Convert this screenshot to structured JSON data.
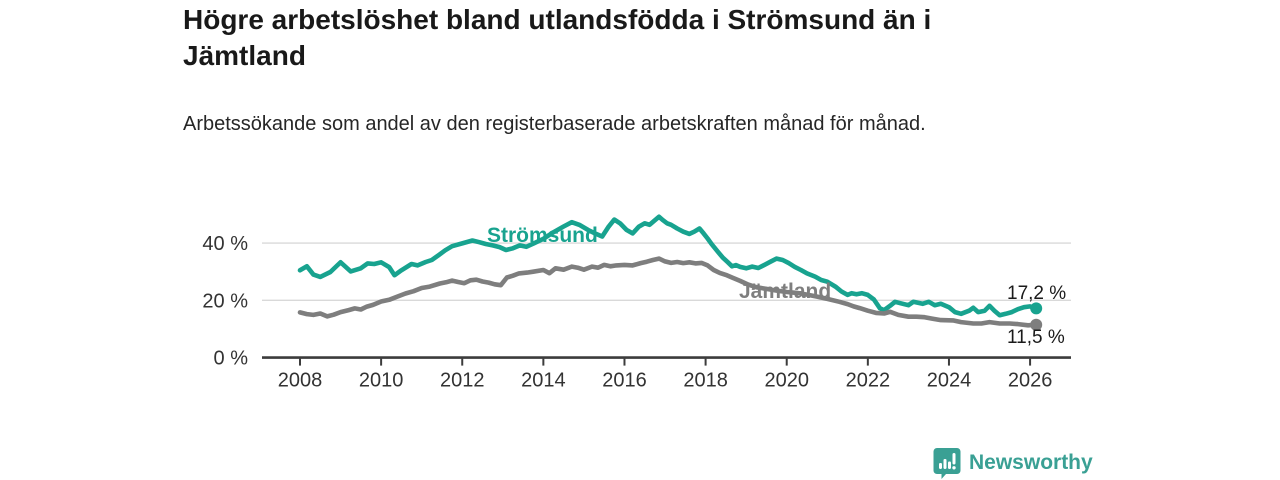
{
  "title": "Högre arbetslöshet bland utlandsfödda i Strömsund än i Jämtland",
  "subtitle": "Arbetssökande som andel av den registerbaserade arbetskraften månad för månad.",
  "footer": {
    "logo_text": "Newsworthy",
    "logo_icon": "bar-chart-speech-bubble"
  },
  "colors": {
    "stromsund": "#18a38f",
    "jamtland": "#7e7e7e",
    "grid": "#d9d9d9",
    "axis": "#3c3c3c",
    "tick_text": "#333333",
    "title_text": "#191919",
    "value_text": "#1a1a1a",
    "brand": "#3aa094"
  },
  "chart_data": {
    "type": "line",
    "title": "Högre arbetslöshet bland utlandsfödda i Strömsund än i Jämtland",
    "subtitle": "Arbetssökande som andel av den registerbaserade arbetskraften månad för månad.",
    "xlabel": "",
    "ylabel": "",
    "x_ticks": [
      2008,
      2010,
      2012,
      2014,
      2016,
      2018,
      2020,
      2022,
      2024,
      2026
    ],
    "y_ticks": [
      {
        "value": 40,
        "label": "40 %"
      },
      {
        "value": 20,
        "label": "20 %"
      },
      {
        "value": 0,
        "label": "0 %"
      }
    ],
    "x_range": [
      2007.1,
      2027.0
    ],
    "y_range": [
      0,
      54
    ],
    "grid": "horizontal",
    "legend_position": "inline-labels",
    "series": [
      {
        "name": "Strömsund",
        "color_key": "stromsund",
        "end_label": "17,2 %",
        "end_value": 17.2,
        "points": [
          [
            2008.0,
            30.5
          ],
          [
            2008.17,
            31.9
          ],
          [
            2008.33,
            29.0
          ],
          [
            2008.5,
            28.2
          ],
          [
            2008.75,
            29.9
          ],
          [
            2008.92,
            32.2
          ],
          [
            2009.0,
            33.3
          ],
          [
            2009.25,
            30.1
          ],
          [
            2009.5,
            31.2
          ],
          [
            2009.67,
            32.9
          ],
          [
            2009.83,
            32.7
          ],
          [
            2010.0,
            33.3
          ],
          [
            2010.2,
            31.6
          ],
          [
            2010.33,
            28.8
          ],
          [
            2010.5,
            30.5
          ],
          [
            2010.75,
            32.7
          ],
          [
            2010.9,
            32.2
          ],
          [
            2011.1,
            33.4
          ],
          [
            2011.25,
            34.1
          ],
          [
            2011.42,
            35.8
          ],
          [
            2011.58,
            37.5
          ],
          [
            2011.75,
            38.9
          ],
          [
            2012.0,
            39.9
          ],
          [
            2012.25,
            40.9
          ],
          [
            2012.42,
            40.3
          ],
          [
            2012.58,
            39.7
          ],
          [
            2012.75,
            39.2
          ],
          [
            2012.92,
            38.6
          ],
          [
            2013.08,
            37.6
          ],
          [
            2013.25,
            38.2
          ],
          [
            2013.42,
            39.2
          ],
          [
            2013.58,
            38.7
          ],
          [
            2013.75,
            39.8
          ],
          [
            2014.0,
            41.5
          ],
          [
            2014.25,
            43.8
          ],
          [
            2014.5,
            45.8
          ],
          [
            2014.7,
            47.3
          ],
          [
            2014.9,
            46.3
          ],
          [
            2015.1,
            44.6
          ],
          [
            2015.3,
            43.2
          ],
          [
            2015.45,
            42.3
          ],
          [
            2015.6,
            45.6
          ],
          [
            2015.75,
            48.2
          ],
          [
            2015.9,
            46.8
          ],
          [
            2016.05,
            44.6
          ],
          [
            2016.2,
            43.4
          ],
          [
            2016.35,
            45.7
          ],
          [
            2016.5,
            46.9
          ],
          [
            2016.62,
            46.4
          ],
          [
            2016.72,
            47.6
          ],
          [
            2016.85,
            49.2
          ],
          [
            2016.95,
            48.0
          ],
          [
            2017.05,
            46.9
          ],
          [
            2017.15,
            46.4
          ],
          [
            2017.3,
            45.1
          ],
          [
            2017.45,
            44.0
          ],
          [
            2017.6,
            43.2
          ],
          [
            2017.72,
            44.0
          ],
          [
            2017.85,
            45.1
          ],
          [
            2017.95,
            43.4
          ],
          [
            2018.05,
            41.6
          ],
          [
            2018.15,
            39.6
          ],
          [
            2018.3,
            37.0
          ],
          [
            2018.42,
            35.0
          ],
          [
            2018.55,
            33.3
          ],
          [
            2018.65,
            31.9
          ],
          [
            2018.75,
            32.3
          ],
          [
            2018.85,
            31.7
          ],
          [
            2019.0,
            31.2
          ],
          [
            2019.15,
            31.8
          ],
          [
            2019.3,
            31.3
          ],
          [
            2019.45,
            32.4
          ],
          [
            2019.6,
            33.5
          ],
          [
            2019.75,
            34.6
          ],
          [
            2019.9,
            34.1
          ],
          [
            2020.05,
            33.0
          ],
          [
            2020.2,
            31.7
          ],
          [
            2020.35,
            30.6
          ],
          [
            2020.5,
            29.4
          ],
          [
            2020.7,
            28.3
          ],
          [
            2020.85,
            27.1
          ],
          [
            2021.0,
            26.5
          ],
          [
            2021.2,
            24.8
          ],
          [
            2021.35,
            23.1
          ],
          [
            2021.5,
            21.9
          ],
          [
            2021.6,
            22.5
          ],
          [
            2021.72,
            22.1
          ],
          [
            2021.85,
            22.5
          ],
          [
            2022.0,
            21.9
          ],
          [
            2022.15,
            20.3
          ],
          [
            2022.3,
            17.2
          ],
          [
            2022.4,
            16.6
          ],
          [
            2022.55,
            18.1
          ],
          [
            2022.67,
            19.5
          ],
          [
            2022.8,
            19.0
          ],
          [
            2023.0,
            18.3
          ],
          [
            2023.12,
            19.5
          ],
          [
            2023.35,
            18.8
          ],
          [
            2023.5,
            19.5
          ],
          [
            2023.65,
            18.3
          ],
          [
            2023.8,
            18.8
          ],
          [
            2024.0,
            17.6
          ],
          [
            2024.15,
            15.9
          ],
          [
            2024.3,
            15.3
          ],
          [
            2024.5,
            16.4
          ],
          [
            2024.6,
            17.4
          ],
          [
            2024.72,
            15.9
          ],
          [
            2024.88,
            16.4
          ],
          [
            2025.0,
            18.1
          ],
          [
            2025.12,
            16.4
          ],
          [
            2025.25,
            14.8
          ],
          [
            2025.4,
            15.3
          ],
          [
            2025.55,
            15.9
          ],
          [
            2025.7,
            16.9
          ],
          [
            2025.85,
            17.6
          ],
          [
            2026.0,
            17.9
          ],
          [
            2026.15,
            17.2
          ]
        ]
      },
      {
        "name": "Jämtland",
        "color_key": "jamtland",
        "end_label": "11,5 %",
        "end_value": 11.5,
        "points": [
          [
            2008.0,
            15.8
          ],
          [
            2008.17,
            15.2
          ],
          [
            2008.33,
            14.9
          ],
          [
            2008.5,
            15.4
          ],
          [
            2008.67,
            14.4
          ],
          [
            2008.83,
            15.0
          ],
          [
            2009.0,
            15.9
          ],
          [
            2009.2,
            16.6
          ],
          [
            2009.35,
            17.2
          ],
          [
            2009.5,
            16.8
          ],
          [
            2009.65,
            17.8
          ],
          [
            2009.8,
            18.4
          ],
          [
            2010.0,
            19.6
          ],
          [
            2010.2,
            20.2
          ],
          [
            2010.4,
            21.3
          ],
          [
            2010.6,
            22.4
          ],
          [
            2010.8,
            23.2
          ],
          [
            2011.0,
            24.3
          ],
          [
            2011.2,
            24.8
          ],
          [
            2011.45,
            25.9
          ],
          [
            2011.6,
            26.3
          ],
          [
            2011.75,
            26.9
          ],
          [
            2011.9,
            26.4
          ],
          [
            2012.05,
            26.0
          ],
          [
            2012.2,
            27.0
          ],
          [
            2012.35,
            27.2
          ],
          [
            2012.5,
            26.6
          ],
          [
            2012.65,
            26.2
          ],
          [
            2012.8,
            25.6
          ],
          [
            2012.95,
            25.3
          ],
          [
            2013.1,
            28.0
          ],
          [
            2013.25,
            28.6
          ],
          [
            2013.4,
            29.4
          ],
          [
            2013.6,
            29.7
          ],
          [
            2013.75,
            30.0
          ],
          [
            2014.0,
            30.6
          ],
          [
            2014.15,
            29.5
          ],
          [
            2014.3,
            31.2
          ],
          [
            2014.5,
            30.7
          ],
          [
            2014.7,
            31.8
          ],
          [
            2014.85,
            31.4
          ],
          [
            2015.0,
            30.7
          ],
          [
            2015.2,
            31.8
          ],
          [
            2015.35,
            31.4
          ],
          [
            2015.5,
            32.4
          ],
          [
            2015.65,
            31.9
          ],
          [
            2015.8,
            32.2
          ],
          [
            2016.0,
            32.4
          ],
          [
            2016.2,
            32.2
          ],
          [
            2016.4,
            33.0
          ],
          [
            2016.55,
            33.5
          ],
          [
            2016.7,
            34.1
          ],
          [
            2016.85,
            34.6
          ],
          [
            2017.0,
            33.6
          ],
          [
            2017.15,
            33.1
          ],
          [
            2017.3,
            33.4
          ],
          [
            2017.45,
            33.0
          ],
          [
            2017.6,
            33.3
          ],
          [
            2017.75,
            32.9
          ],
          [
            2017.9,
            33.1
          ],
          [
            2018.05,
            32.2
          ],
          [
            2018.2,
            30.6
          ],
          [
            2018.35,
            29.6
          ],
          [
            2018.5,
            28.9
          ],
          [
            2018.65,
            28.0
          ],
          [
            2018.85,
            26.8
          ],
          [
            2019.05,
            25.5
          ],
          [
            2019.25,
            24.6
          ],
          [
            2019.5,
            24.0
          ],
          [
            2019.75,
            23.4
          ],
          [
            2020.0,
            22.9
          ],
          [
            2020.25,
            22.6
          ],
          [
            2020.5,
            22.0
          ],
          [
            2020.75,
            21.3
          ],
          [
            2021.0,
            20.5
          ],
          [
            2021.3,
            19.5
          ],
          [
            2021.5,
            18.7
          ],
          [
            2021.65,
            17.9
          ],
          [
            2021.8,
            17.3
          ],
          [
            2022.0,
            16.4
          ],
          [
            2022.2,
            15.6
          ],
          [
            2022.4,
            15.4
          ],
          [
            2022.55,
            16.0
          ],
          [
            2022.75,
            14.9
          ],
          [
            2023.0,
            14.3
          ],
          [
            2023.2,
            14.3
          ],
          [
            2023.4,
            14.1
          ],
          [
            2023.6,
            13.6
          ],
          [
            2023.8,
            13.1
          ],
          [
            2024.1,
            13.0
          ],
          [
            2024.3,
            12.4
          ],
          [
            2024.6,
            11.9
          ],
          [
            2024.8,
            11.9
          ],
          [
            2025.0,
            12.4
          ],
          [
            2025.25,
            11.9
          ],
          [
            2025.5,
            11.9
          ],
          [
            2025.7,
            11.7
          ],
          [
            2025.95,
            11.3
          ],
          [
            2026.15,
            11.5
          ]
        ]
      }
    ]
  }
}
